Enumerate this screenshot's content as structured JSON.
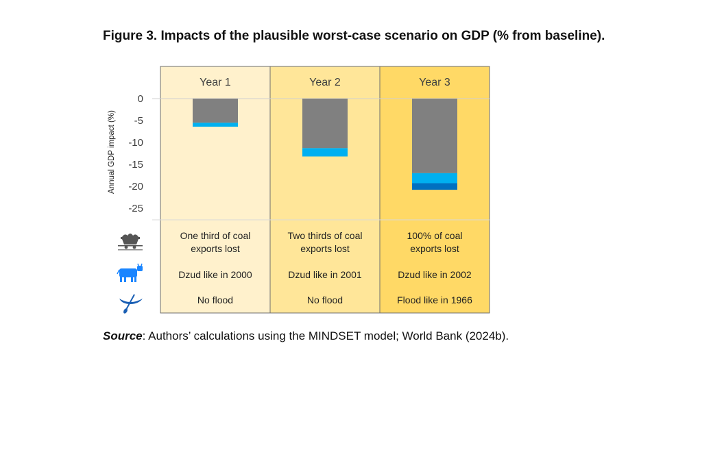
{
  "figure": {
    "title": "Figure 3. Impacts of the plausible worst-case scenario on GDP (% from baseline).",
    "source_label": "Source",
    "source_text": ": Authors’ calculations using the MINDSET model; World Bank (2024b)."
  },
  "chart_data": {
    "type": "bar",
    "title": "",
    "xlabel": "",
    "ylabel": "Annual GDP impact (%)",
    "ylim": [
      -25,
      0
    ],
    "yticks": [
      0,
      -5,
      -10,
      -15,
      -20,
      -25
    ],
    "grid": false,
    "legend": "none",
    "categories": [
      "Year 1",
      "Year 2",
      "Year 3"
    ],
    "panel_colors": [
      "#fff1cc",
      "#ffe699",
      "#ffd966"
    ],
    "series": [
      {
        "color": "#808080",
        "values": [
          -5.5,
          -11.3,
          -17.0
        ]
      },
      {
        "color": "#00b0f0",
        "values": [
          -0.9,
          -1.9,
          -2.3
        ]
      },
      {
        "color": "#0070c0",
        "values": [
          0,
          0,
          -1.5
        ]
      }
    ],
    "table": {
      "rows": [
        {
          "icon": "coal-cart-icon",
          "cells": [
            "One third of coal exports lost",
            "Two thirds of coal exports lost",
            "100% of coal exports lost"
          ]
        },
        {
          "icon": "cow-icon",
          "cells": [
            "Dzud like in 2000",
            "Dzud like in 2001",
            "Dzud like in 2002"
          ]
        },
        {
          "icon": "canoe-icon",
          "cells": [
            "No flood",
            "No flood",
            "Flood like in 1966"
          ]
        }
      ]
    }
  }
}
